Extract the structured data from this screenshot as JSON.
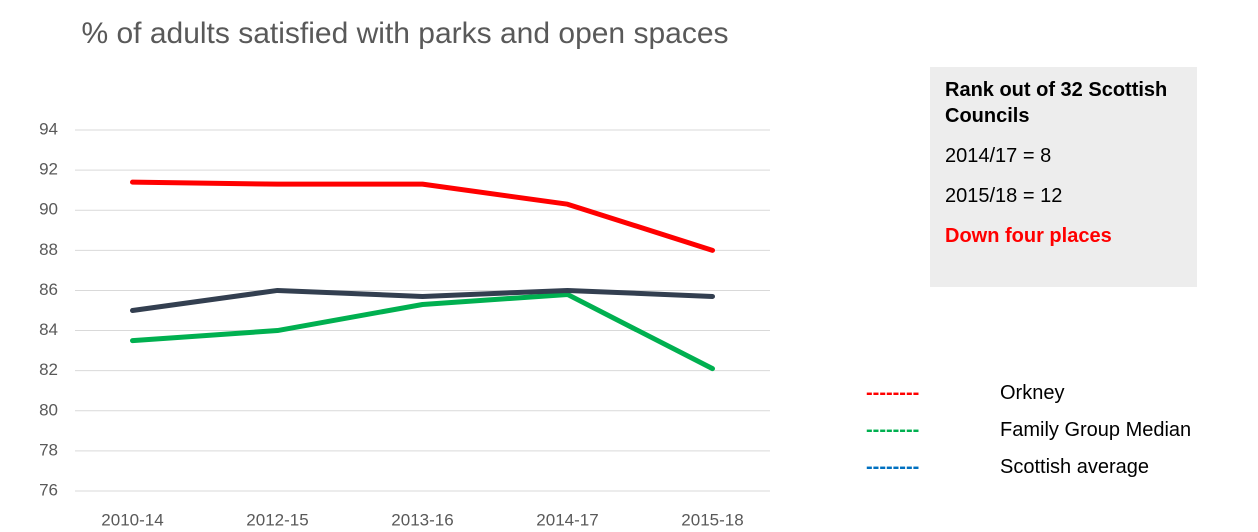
{
  "chart_data": {
    "type": "line",
    "title": "% of adults satisfied with parks and open spaces",
    "categories": [
      "2010-14",
      "2012-15",
      "2013-16",
      "2014-17",
      "2015-18"
    ],
    "series": [
      {
        "name": "Orkney",
        "color": "#ff0000",
        "legend_marker": "--------",
        "legend_color": "#ff0000",
        "values": [
          91.4,
          91.3,
          91.3,
          90.3,
          88.0
        ]
      },
      {
        "name": "Family Group Median",
        "color": "#00b050",
        "legend_marker": "--------",
        "legend_color": "#00b050",
        "values": [
          83.5,
          84.0,
          85.3,
          85.8,
          82.1
        ]
      },
      {
        "name": "Scottish average",
        "color": "#333f50",
        "legend_marker": "--------",
        "legend_color": "#0070c0",
        "values": [
          85.0,
          86.0,
          85.7,
          86.0,
          85.7
        ]
      }
    ],
    "ylim": [
      76,
      94
    ],
    "yticks": [
      76,
      78,
      80,
      82,
      84,
      86,
      88,
      90,
      92,
      94
    ],
    "grid": true,
    "annotation": {
      "heading": "Rank out of 32 Scottish Councils",
      "lines": [
        "2014/17 = 8",
        "2015/18 = 12"
      ],
      "summary": "Down four places",
      "summary_color": "#ff0000"
    }
  }
}
